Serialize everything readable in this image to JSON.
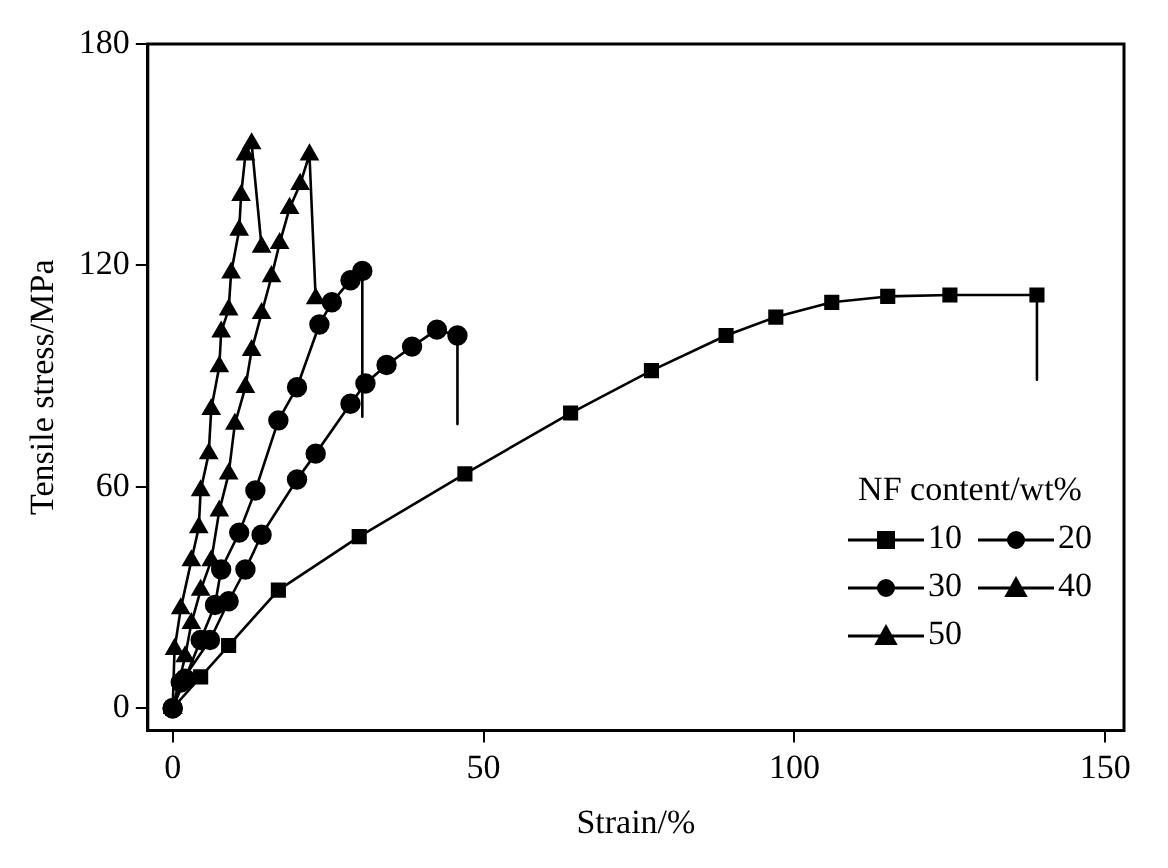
{
  "chart_data": {
    "type": "line",
    "xlabel": "Strain/%",
    "ylabel": "Tensile stress/MPa",
    "legend_title": "NF content/wt%",
    "xlim": [
      -4,
      153
    ],
    "ylim": [
      -6,
      180
    ],
    "xticks": [
      0,
      50,
      100,
      150
    ],
    "yticks": [
      0,
      60,
      120,
      180
    ],
    "grid": false,
    "legend": "right",
    "line_style": "solid",
    "series": [
      {
        "name": "10",
        "color": "#000000",
        "marker": "square",
        "x": [
          0,
          4.5,
          9,
          17,
          30,
          47,
          64,
          77,
          89,
          97,
          106,
          115,
          125,
          139,
          139
        ],
        "values": [
          0,
          8.5,
          17,
          32,
          46.5,
          63.5,
          80,
          91.5,
          101,
          106,
          110,
          111.6,
          112,
          112,
          89
        ]
      },
      {
        "name": "20",
        "color": "#000000",
        "marker": "circle",
        "x": [
          0,
          1.3,
          6,
          9,
          11.7,
          14.3,
          20,
          23,
          28.6,
          31,
          34.4,
          38.5,
          42.5,
          45.8,
          45.8
        ],
        "values": [
          0,
          7,
          18.5,
          29,
          37.6,
          47,
          62,
          69,
          82.5,
          88,
          93,
          98,
          102.6,
          101,
          77
        ]
      },
      {
        "name": "30",
        "color": "#000000",
        "marker": "circle",
        "x": [
          0,
          2,
          4.5,
          6.8,
          7.8,
          10.7,
          13.3,
          17,
          20,
          23.6,
          25.6,
          28.6,
          30.5,
          30.5
        ],
        "values": [
          0,
          8,
          18.5,
          28,
          37.6,
          47.6,
          59,
          78,
          87,
          104,
          110,
          116,
          118.5,
          79
        ]
      },
      {
        "name": "40",
        "color": "#000000",
        "marker": "triangle",
        "x": [
          0,
          2,
          3,
          4.5,
          6.2,
          7.5,
          9,
          10,
          11.7,
          12.7,
          14.3,
          15.9,
          17.2,
          18.8,
          20.5,
          22,
          23
        ],
        "values": [
          0,
          14,
          23,
          32,
          40,
          53.5,
          63.5,
          77,
          87,
          97,
          107,
          117,
          126,
          135.5,
          142,
          150,
          111
        ]
      },
      {
        "name": "50",
        "color": "#000000",
        "marker": "triangle",
        "x": [
          0,
          0.3,
          1.3,
          3,
          4.2,
          4.5,
          5.8,
          6.2,
          7.5,
          7.8,
          9,
          9.4,
          10.7,
          11,
          11.7,
          12.7,
          14.3
        ],
        "values": [
          0,
          16,
          27,
          40,
          49,
          59,
          69,
          81,
          92.6,
          102,
          108,
          118,
          129.6,
          139,
          150,
          153,
          125
        ]
      }
    ]
  }
}
